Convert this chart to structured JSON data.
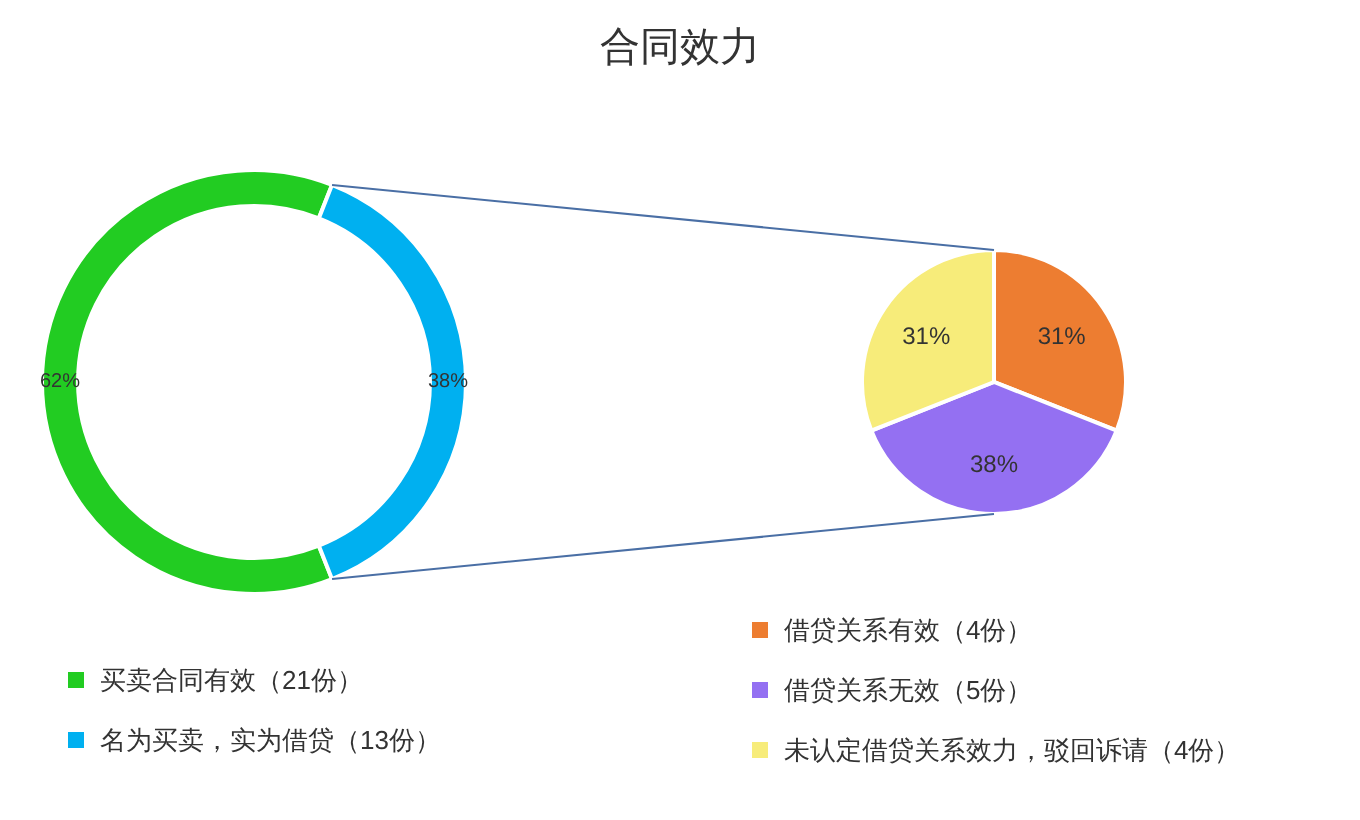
{
  "chart_data": [
    {
      "type": "donut",
      "title": "合同效力",
      "categories": [
        "买卖合同有效（21份）",
        "名为买卖，实为借贷（13份）"
      ],
      "values": [
        62,
        38
      ],
      "value_labels": [
        "62%",
        "38%"
      ],
      "colors": [
        "#22cc22",
        "#00b0f0"
      ],
      "legend": "bottom left"
    },
    {
      "type": "pie",
      "categories": [
        "借贷关系有效（4份）",
        "借贷关系无效（5份）",
        "未认定借贷关系效力，驳回诉请（4份）"
      ],
      "values": [
        31,
        38,
        31
      ],
      "value_labels": [
        "31%",
        "38%",
        "31%"
      ],
      "colors": [
        "#ed7d31",
        "#9470f2",
        "#f7ec7a"
      ],
      "legend": "bottom right"
    }
  ]
}
